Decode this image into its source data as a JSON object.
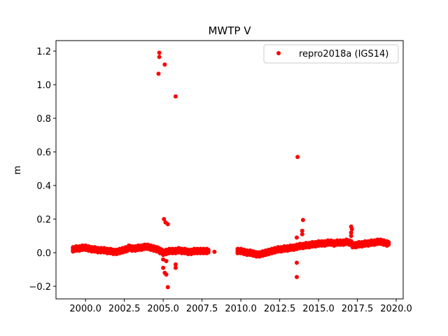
{
  "chart_data": {
    "type": "scatter",
    "title": "MWTP V",
    "xlabel": "",
    "ylabel": "m",
    "xlim": [
      1998.1,
      2020.45
    ],
    "ylim": [
      -0.275,
      1.2625
    ],
    "xticks": [
      2000.0,
      2002.5,
      2005.0,
      2007.5,
      2010.0,
      2012.5,
      2015.0,
      2017.5,
      2020.0
    ],
    "xtick_labels": [
      "2000.0",
      "2002.5",
      "2005.0",
      "2007.5",
      "2010.0",
      "2012.5",
      "2015.0",
      "2017.5",
      "2020.0"
    ],
    "yticks": [
      -0.2,
      0.0,
      0.2,
      0.4,
      0.6,
      0.8,
      1.0,
      1.2
    ],
    "ytick_labels": [
      "−0.2",
      "0.0",
      "0.2",
      "0.4",
      "0.6",
      "0.8",
      "1.0",
      "1.2"
    ],
    "grid": false,
    "legend": {
      "placement": "top-right",
      "entries": [
        "repro2018a (IGS14)"
      ]
    },
    "color": "#ff0000",
    "series": [
      {
        "name": "repro2018a (IGS14)",
        "segments": [
          {
            "x_start": 1999.2,
            "x_step": 0.2,
            "spread": 0.012,
            "y": [
              0.02,
              0.025,
              0.025,
              0.03,
              0.03,
              0.025,
              0.02,
              0.02,
              0.015,
              0.015,
              0.015,
              0.01,
              0.01,
              0.005,
              0.005,
              0.01,
              0.015,
              0.02,
              0.03,
              0.025,
              0.025,
              0.03,
              0.03,
              0.035,
              0.035,
              0.03,
              0.025,
              0.02,
              0.01,
              0.0,
              0.005,
              0.01,
              0.01,
              0.01,
              0.015,
              0.01,
              0.01,
              0.005,
              0.005,
              0.01,
              0.01,
              0.01,
              0.01,
              0.01
            ]
          },
          {
            "x_start": 2009.8,
            "x_step": 0.2,
            "spread": 0.012,
            "y": [
              0.01,
              0.01,
              0.005,
              0,
              0,
              -0.005,
              -0.01,
              -0.01,
              -0.005,
              0,
              0.005,
              0.01,
              0.015,
              0.02,
              0.02,
              0.025,
              0.025,
              0.03,
              0.03,
              0.035,
              0.04,
              0.04,
              0.045,
              0.045,
              0.05,
              0.05,
              0.055,
              0.055,
              0.055,
              0.06,
              0.06,
              0.055,
              0.06,
              0.06,
              0.06,
              0.065,
              0.06,
              0.045,
              0.045,
              0.05,
              0.05,
              0.055,
              0.055,
              0.06,
              0.06,
              0.065,
              0.065,
              0.06,
              0.055
            ]
          }
        ],
        "points": [
          [
            2004.75,
            1.19
          ],
          [
            2004.75,
            1.165
          ],
          [
            2004.7,
            1.065
          ],
          [
            2005.1,
            1.12
          ],
          [
            2005.8,
            0.93
          ],
          [
            2005.05,
            0.2
          ],
          [
            2005.15,
            0.18
          ],
          [
            2005.3,
            0.17
          ],
          [
            2005.0,
            -0.09
          ],
          [
            2005.1,
            -0.12
          ],
          [
            2005.2,
            -0.13
          ],
          [
            2005.3,
            -0.205
          ],
          [
            2005.8,
            -0.07
          ],
          [
            2005.8,
            -0.09
          ],
          [
            2005.0,
            -0.04
          ],
          [
            2005.2,
            -0.05
          ],
          [
            2008.3,
            0.005
          ],
          [
            2013.65,
            0.57
          ],
          [
            2013.6,
            -0.06
          ],
          [
            2013.6,
            -0.145
          ],
          [
            2014.0,
            0.195
          ],
          [
            2013.95,
            0.13
          ],
          [
            2013.95,
            0.11
          ],
          [
            2013.6,
            0.09
          ],
          [
            2017.1,
            0.155
          ],
          [
            2017.15,
            0.14
          ],
          [
            2017.1,
            0.12
          ],
          [
            2017.1,
            0.1
          ]
        ]
      }
    ]
  }
}
